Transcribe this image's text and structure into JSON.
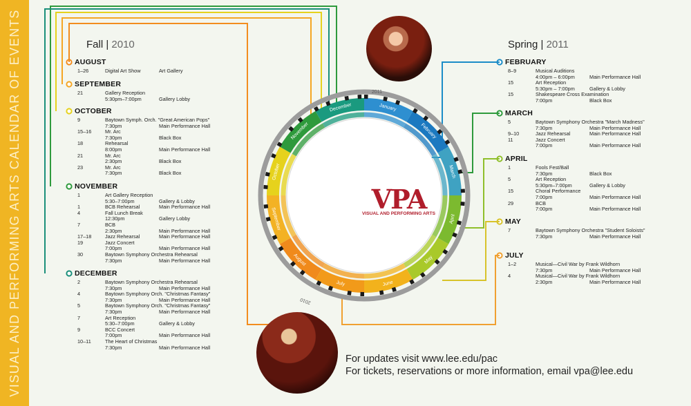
{
  "sidebar_title": "VISUAL AND PERFORMING ARTS CALENDAR OF EVENTS",
  "fall": {
    "season": "Fall",
    "year": "2010",
    "months": [
      {
        "name": "AUGUST",
        "events": [
          [
            "1–26",
            "Digital Art Show",
            "Art Gallery"
          ]
        ]
      },
      {
        "name": "SEPTEMBER",
        "events": [
          [
            "21",
            "Gallery Reception",
            ""
          ],
          [
            "",
            "5:30pm–7:00pm",
            "Gallery Lobby"
          ]
        ]
      },
      {
        "name": "OCTOBER",
        "events": [
          [
            "9",
            "Baytown Symph. Orch. \"Great American Pops\"",
            ""
          ],
          [
            "",
            "7:30pm",
            "Main Performance Hall"
          ],
          [
            "15–16",
            "Mr. Arc",
            ""
          ],
          [
            "",
            "7:30pm",
            "Black Box"
          ],
          [
            "18",
            "Rehearsal",
            ""
          ],
          [
            "",
            "8:00pm",
            "Main Performance Hall"
          ],
          [
            "21",
            "Mr. Arc",
            ""
          ],
          [
            "",
            "2:30pm",
            "Black Box"
          ],
          [
            "23",
            "Mr. Arc",
            ""
          ],
          [
            "",
            "7:30pm",
            "Black Box"
          ]
        ]
      },
      {
        "name": "NOVEMBER",
        "events": [
          [
            "1",
            "Art Gallery Reception",
            ""
          ],
          [
            "",
            "5:30–7:00pm",
            "Gallery & Lobby"
          ],
          [
            "1",
            "BCB Rehearsal",
            "Main Performance Hall"
          ],
          [
            "4",
            "Fall Lunch Break",
            ""
          ],
          [
            "",
            "12:30pm",
            "Gallery Lobby"
          ],
          [
            "7",
            "BCB",
            ""
          ],
          [
            "",
            "2:30pm",
            "Main Performance Hall"
          ],
          [
            "17–18",
            "Jazz Rehearsal",
            "Main Performance Hall"
          ],
          [
            "19",
            "Jazz Concert",
            ""
          ],
          [
            "",
            "7:00pm",
            "Main Performance Hall"
          ],
          [
            "30",
            "Baytown Symphony Orchestra Rehearsal",
            ""
          ],
          [
            "",
            "7:30pm",
            "Main Performance Hall"
          ]
        ]
      },
      {
        "name": "DECEMBER",
        "events": [
          [
            "2",
            "Baytown Symphony Orchestra Rehearsal",
            ""
          ],
          [
            "",
            "7:30pm",
            "Main Performance Hall"
          ],
          [
            "4",
            "Baytown Symphony Orch. \"Christmas Fantasy\"",
            ""
          ],
          [
            "",
            "7:30pm",
            "Main Performance Hall"
          ],
          [
            "5",
            "Baytown Symphony Orch. \"Christmas Fantasy\"",
            ""
          ],
          [
            "",
            "7:30pm",
            "Main Performance Hall"
          ],
          [
            "7",
            "Art Reception",
            ""
          ],
          [
            "",
            "5:30–7:00pm",
            "Gallery & Lobby"
          ],
          [
            "9",
            "BCC Concert",
            ""
          ],
          [
            "",
            "7:00pm",
            "Main Performance Hall"
          ],
          [
            "10–11",
            "The Heart of Christmas",
            ""
          ],
          [
            "",
            "7:30pm",
            "Main Performance Hall"
          ]
        ]
      }
    ]
  },
  "spring": {
    "season": "Spring",
    "year": "2011",
    "months": [
      {
        "name": "FEBRUARY",
        "events": [
          [
            "8–9",
            "Musical Auditions",
            ""
          ],
          [
            "",
            "4:00pm – 6:00pm",
            "Main Performance Hall"
          ],
          [
            "15",
            "Art Reception",
            ""
          ],
          [
            "",
            "5:30pm – 7:00pm",
            "Gallery & Lobby"
          ],
          [
            "15",
            "Shakespeare Cross Examination",
            ""
          ],
          [
            "",
            "7:00pm",
            "Black Box"
          ]
        ]
      },
      {
        "name": "MARCH",
        "events": [
          [
            "5",
            "Baytown Symphony Orchestra \"March Madness\"",
            ""
          ],
          [
            "",
            "7:30pm",
            "Main Performance Hall"
          ],
          [
            "9–10",
            "Jazz Rehearsal",
            "Main Performance Hall"
          ],
          [
            "11",
            "Jazz Concert",
            ""
          ],
          [
            "",
            "7:00pm",
            "Main Performance Hall"
          ]
        ]
      },
      {
        "name": "APRIL",
        "events": [
          [
            "1",
            "Fools Fest/Ball",
            ""
          ],
          [
            "",
            "7:30pm",
            "Black Box"
          ],
          [
            "5",
            "Art Reception",
            ""
          ],
          [
            "",
            "5:30pm–7:00pm",
            "Gallery & Lobby"
          ],
          [
            "15",
            "Choral Performance",
            ""
          ],
          [
            "",
            "7:00pm",
            "Main Performance Hall"
          ],
          [
            "29",
            "BCB",
            ""
          ],
          [
            "",
            "7:00pm",
            "Main Performance Hall"
          ]
        ]
      },
      {
        "name": "MAY",
        "events": [
          [
            "7",
            "Baytown Symphony Orchestra \"Student Soloists\"",
            ""
          ],
          [
            "",
            "7:30pm",
            "Main Performance Hall"
          ]
        ]
      },
      {
        "name": "JULY",
        "events": [
          [
            "1–2",
            "Musical—Civil War by Frank Wildhorn",
            ""
          ],
          [
            "",
            "7:30pm",
            "Main Performance Hall"
          ],
          [
            "4",
            "Musical—Civil War by Frank Wildhorn",
            ""
          ],
          [
            "",
            "2:30pm",
            "Main Performance Hall"
          ]
        ]
      }
    ]
  },
  "wheel": {
    "months": [
      "January",
      "February",
      "March",
      "April",
      "May",
      "June",
      "July",
      "August",
      "September",
      "October",
      "November",
      "December"
    ],
    "year_start": "2011",
    "year_end": "2010"
  },
  "logo": {
    "mark": "VPA",
    "subtitle": "VISUAL AND PERFORMING ARTS"
  },
  "contact": {
    "updates": "For updates visit www.lee.edu/pac",
    "tickets": "For tickets, reservations or more information, email vpa@lee.edu"
  },
  "colors": {
    "sidebar": "#f0b523",
    "august": "#f28c1e",
    "september": "#f5a623",
    "october": "#e6d21c",
    "november": "#2e9a3c",
    "december": "#1a8f7a",
    "february": "#1b8cc7",
    "march": "#2e9a3c",
    "april": "#8fbf2a",
    "may": "#d8c32a",
    "july": "#f0a030"
  }
}
